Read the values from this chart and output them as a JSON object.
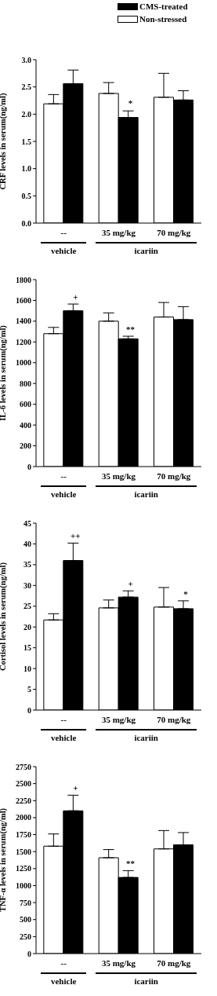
{
  "chart_data": [
    {
      "type": "bar",
      "ylabel": "CRF levels in serum(ng/ml)",
      "categories": [
        "--",
        "35 mg/kg",
        "70 mg/kg"
      ],
      "legend": "top right",
      "series": [
        {
          "name": "Non-stressed",
          "color": "#ffffff",
          "values": [
            2.19,
            2.38,
            2.31
          ],
          "errors": [
            [
              2.19,
              2.36
            ],
            [
              2.38,
              2.58
            ],
            [
              2.31,
              2.75
            ]
          ]
        },
        {
          "name": "CMS-treated",
          "color": "#000000",
          "values": [
            2.56,
            1.94,
            2.26
          ],
          "errors": [
            [
              2.56,
              2.81
            ],
            [
              1.94,
              2.06
            ],
            [
              2.26,
              2.43
            ]
          ]
        }
      ],
      "ylim": [
        0,
        3
      ],
      "yticks": [
        {
          "value": 0,
          "label": "0.0"
        },
        {
          "value": 0.5,
          "label": "0.5"
        },
        {
          "value": 1,
          "label": "1.0"
        },
        {
          "value": 1.5,
          "label": "1.5"
        },
        {
          "value": 2,
          "label": "2.0"
        },
        {
          "value": 2.5,
          "label": "2.5"
        },
        {
          "value": 3,
          "label": "3.0"
        }
      ],
      "annotations": [
        {
          "text": "*",
          "x": "35 mg/kg",
          "y": 1.94
        },
        "vehicle",
        "icariin"
      ]
    },
    {
      "type": "bar",
      "ylabel": "IL-6 levels in serum(ng/ml)",
      "categories": [
        "--",
        "35 mg/kg",
        "70 mg/kg"
      ],
      "series": [
        {
          "color": "#ffffff",
          "values": [
            1280,
            1400,
            1440
          ],
          "errors": [
            [
              1280,
              1340
            ],
            [
              1400,
              1480
            ],
            [
              1440,
              1580
            ]
          ]
        },
        {
          "color": "#000000",
          "values": [
            1500,
            1230,
            1415
          ],
          "errors": [
            [
              1500,
              1565
            ],
            [
              1230,
              1255
            ],
            [
              1415,
              1540
            ]
          ]
        }
      ],
      "ylim": [
        0,
        1800
      ],
      "yticks": [
        0,
        200,
        400,
        600,
        800,
        1000,
        1200,
        1400,
        1600,
        1800
      ],
      "annotations": [
        {
          "text": "+",
          "x": "--",
          "y": 1500
        },
        {
          "text": "**",
          "x": "35 mg/kg",
          "y": 1230
        },
        "vehicle",
        "icariin"
      ]
    },
    {
      "type": "bar",
      "ylabel": "Cortisol levels in serum(ng/ml)",
      "categories": [
        "--",
        "35 mg/kg",
        "70 mg/kg"
      ],
      "series": [
        {
          "color": "#ffffff",
          "values": [
            21.7,
            24.6,
            24.8
          ],
          "errors": [
            [
              21.7,
              23.2
            ],
            [
              24.6,
              26.5
            ],
            [
              24.8,
              29.5
            ]
          ]
        },
        {
          "color": "#000000",
          "values": [
            36.0,
            27.2,
            24.4
          ],
          "errors": [
            [
              36.0,
              40.2
            ],
            [
              27.2,
              28.7
            ],
            [
              24.4,
              26.3
            ]
          ]
        }
      ],
      "ylim": [
        0,
        45
      ],
      "yticks": [
        0,
        5,
        10,
        15,
        20,
        25,
        30,
        35,
        40,
        45
      ],
      "annotations": [
        {
          "text": "++",
          "x": "--",
          "y": 36.0
        },
        {
          "text": "+",
          "x": "35 mg/kg",
          "y": 27.2
        },
        {
          "text": "*",
          "x": "70 mg/kg",
          "y": 24.4
        },
        "vehicle",
        "icariin"
      ]
    },
    {
      "type": "bar",
      "ylabel": "TNF-α levels in serum(ng/ml)",
      "categories": [
        "--",
        "35 mg/kg",
        "70 mg/kg"
      ],
      "series": [
        {
          "color": "#ffffff",
          "values": [
            1580,
            1410,
            1540
          ],
          "errors": [
            [
              1580,
              1760
            ],
            [
              1410,
              1530
            ],
            [
              1540,
              1810
            ]
          ]
        },
        {
          "color": "#000000",
          "values": [
            2100,
            1120,
            1600
          ],
          "errors": [
            [
              2100,
              2330
            ],
            [
              1120,
              1220
            ],
            [
              1600,
              1780
            ]
          ]
        }
      ],
      "ylim": [
        0,
        2750
      ],
      "yticks": [
        0,
        250,
        500,
        750,
        1000,
        1250,
        1500,
        1750,
        2000,
        2250,
        2500,
        2750
      ],
      "annotations": [
        {
          "text": "+",
          "x": "--",
          "y": 2100
        },
        {
          "text": "**",
          "x": "35 mg/kg",
          "y": 1120
        },
        "vehicle",
        "icariin"
      ]
    }
  ]
}
